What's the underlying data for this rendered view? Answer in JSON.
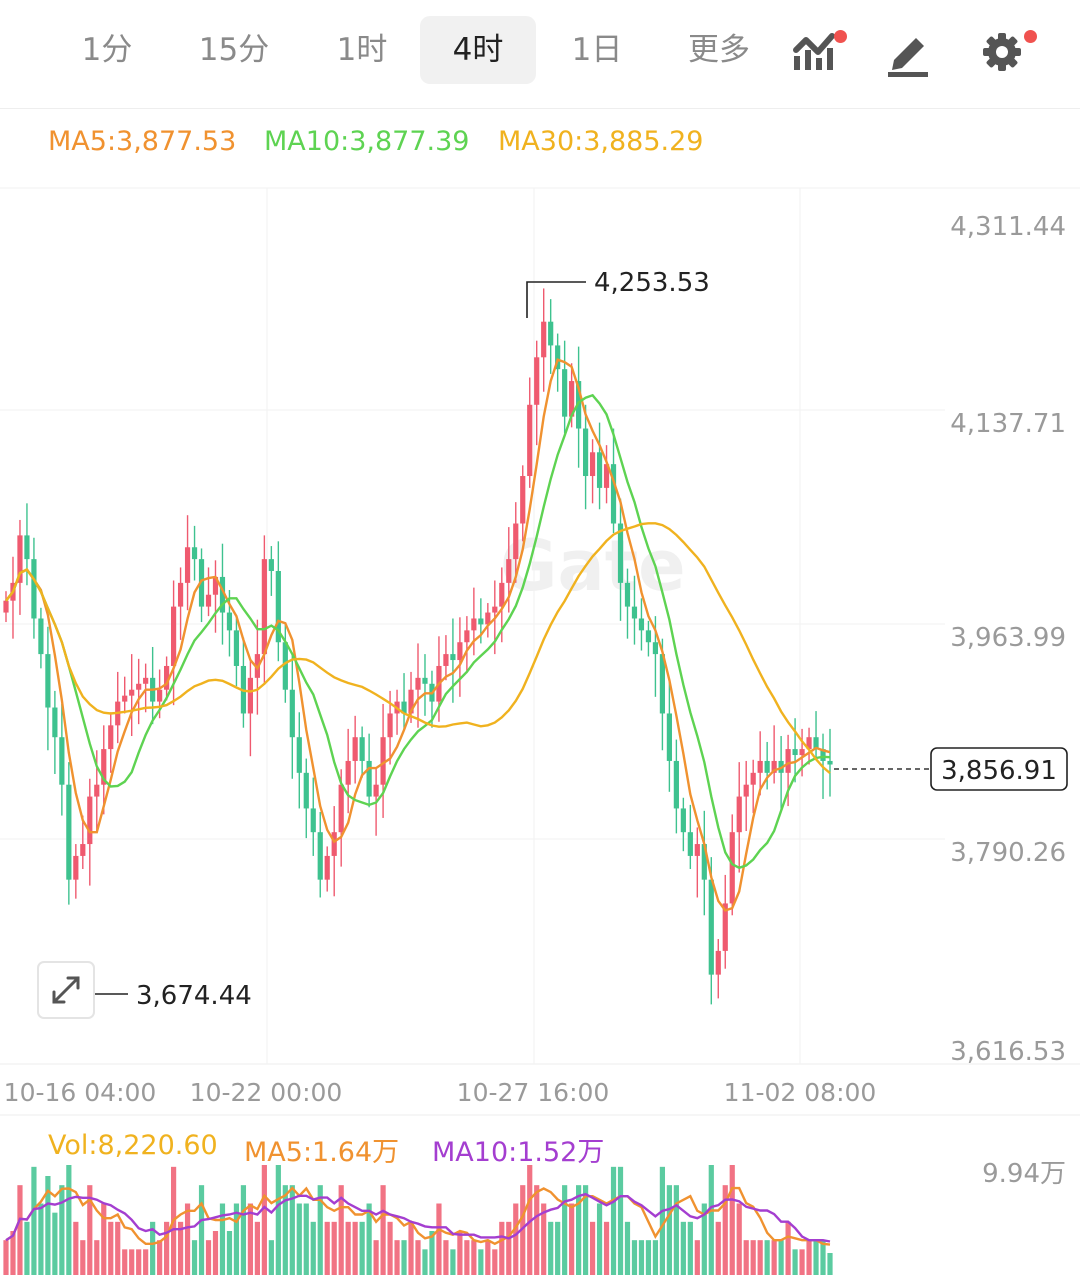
{
  "tabs": [
    {
      "label": "1分",
      "active": false
    },
    {
      "label": "15分",
      "active": false
    },
    {
      "label": "1时",
      "active": false
    },
    {
      "label": "4时",
      "active": true
    },
    {
      "label": "1日",
      "active": false
    },
    {
      "label": "更多",
      "active": false
    }
  ],
  "toolbar_icons": [
    "indicator-icon",
    "draw-pen-icon",
    "settings-gear-icon"
  ],
  "colors": {
    "up": "#ef5a6f",
    "down": "#3ec28f",
    "ma5": "#f09230",
    "ma10": "#5ed352",
    "ma30": "#f0b21f",
    "vol_ma5": "#f09230",
    "vol_ma10": "#a43ed0"
  },
  "legend": {
    "ma5": "MA5:3,877.53",
    "ma10": "MA10:3,877.39",
    "ma30": "MA30:3,885.29"
  },
  "price_box": "3,856.91",
  "vol_legend": {
    "vol": "Vol:8,220.60",
    "ma5": "MA5:1.64万",
    "ma10": "MA10:1.52万",
    "max": "9.94万"
  },
  "chart_data": {
    "type": "candlestick",
    "y_ticks": [
      "4,311.44",
      "4,137.71",
      "3,963.99",
      "3,790.26",
      "3,616.53"
    ],
    "y_tick_values": [
      4311.44,
      4137.71,
      3963.99,
      3790.26,
      3616.53
    ],
    "x_ticks": [
      "10-16 04:00",
      "10-22 00:00",
      "10-27 16:00",
      "11-02 08:00"
    ],
    "high_label": "4,253.53",
    "low_label": "3,674.44",
    "close": [
      3995,
      4010,
      4050,
      4030,
      3980,
      3950,
      3905,
      3880,
      3840,
      3760,
      3780,
      3790,
      3830,
      3840,
      3870,
      3890,
      3910,
      3915,
      3920,
      3925,
      3930,
      3910,
      3920,
      3940,
      3990,
      4010,
      4040,
      4030,
      3990,
      4000,
      4015,
      3985,
      3970,
      3940,
      3900,
      3930,
      3950,
      4030,
      4020,
      3960,
      3920,
      3880,
      3850,
      3820,
      3800,
      3760,
      3780,
      3800,
      3840,
      3860,
      3880,
      3860,
      3830,
      3840,
      3880,
      3900,
      3910,
      3900,
      3920,
      3930,
      3925,
      3910,
      3940,
      3950,
      3945,
      3960,
      3970,
      3980,
      3975,
      3985,
      3990,
      4010,
      4030,
      4060,
      4100,
      4160,
      4200,
      4230,
      4210,
      4190,
      4150,
      4180,
      4140,
      4100,
      4120,
      4090,
      4110,
      4060,
      4010,
      3990,
      3980,
      3970,
      3960,
      3950,
      3900,
      3860,
      3820,
      3800,
      3780,
      3790,
      3760,
      3680,
      3700,
      3740,
      3800,
      3830,
      3840,
      3850,
      3860,
      3850,
      3860,
      3850,
      3870,
      3865,
      3870,
      3880,
      3870,
      3860,
      3857
    ],
    "ma_values": {
      "ma5": 3877.53,
      "ma10": 3877.39,
      "ma30": 3885.29
    },
    "volume_max_label": "9.94万"
  }
}
